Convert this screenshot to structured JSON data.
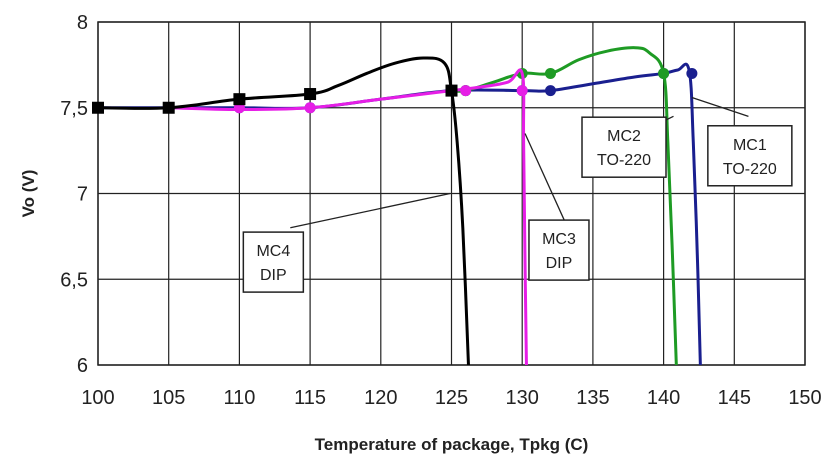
{
  "chart_data": {
    "type": "line",
    "title": "",
    "xlabel": "Temperature of package, Tpkg (C)",
    "ylabel": "Vo (V)",
    "xlim": [
      100,
      150
    ],
    "ylim": [
      6,
      8
    ],
    "x_ticks": [
      "100",
      "105",
      "110",
      "115",
      "120",
      "125",
      "130",
      "135",
      "140",
      "145",
      "150"
    ],
    "y_ticks": [
      "6",
      "6,5",
      "7",
      "7,5",
      "8"
    ],
    "grid": true,
    "legend": "none",
    "series": [
      {
        "color": "#1a1f8f",
        "marker": "circle",
        "curve": [
          [
            100,
            7.5
          ],
          [
            105,
            7.5
          ],
          [
            110,
            7.5
          ],
          [
            115,
            7.5
          ],
          [
            120,
            7.55
          ],
          [
            125,
            7.6
          ],
          [
            130,
            7.6
          ],
          [
            132,
            7.6
          ],
          [
            135,
            7.64
          ],
          [
            138,
            7.68
          ],
          [
            140,
            7.7
          ],
          [
            141,
            7.72
          ],
          [
            141.8,
            7.72
          ],
          [
            142.1,
            7.3
          ],
          [
            142.4,
            6.6
          ],
          [
            142.6,
            6
          ]
        ],
        "markers": [
          [
            110,
            7.5
          ],
          [
            115,
            7.5
          ],
          [
            126,
            7.6
          ],
          [
            130,
            7.6
          ],
          [
            132,
            7.6
          ],
          [
            140,
            7.7
          ],
          [
            142,
            7.7
          ]
        ]
      },
      {
        "color": "#1e9b24",
        "marker": "circle",
        "curve": [
          [
            125,
            7.6
          ],
          [
            126,
            7.6
          ],
          [
            128,
            7.65
          ],
          [
            130,
            7.7
          ],
          [
            132,
            7.7
          ],
          [
            134,
            7.78
          ],
          [
            136,
            7.83
          ],
          [
            138,
            7.85
          ],
          [
            139,
            7.82
          ],
          [
            140,
            7.7
          ],
          [
            140.3,
            7.3
          ],
          [
            140.6,
            6.7
          ],
          [
            140.9,
            6
          ]
        ],
        "markers": [
          [
            126,
            7.6
          ],
          [
            130,
            7.7
          ],
          [
            132,
            7.7
          ],
          [
            140,
            7.7
          ]
        ]
      },
      {
        "color": "#e61ee6",
        "marker": "circle",
        "curve": [
          [
            105,
            7.5
          ],
          [
            110,
            7.49
          ],
          [
            115,
            7.5
          ],
          [
            120,
            7.55
          ],
          [
            125,
            7.6
          ],
          [
            127,
            7.62
          ],
          [
            129,
            7.65
          ],
          [
            130,
            7.7
          ],
          [
            130.1,
            7.3
          ],
          [
            130.2,
            6.6
          ],
          [
            130.3,
            6
          ]
        ],
        "markers": [
          [
            110,
            7.5
          ],
          [
            115,
            7.5
          ],
          [
            126,
            7.6
          ],
          [
            130,
            7.6
          ]
        ]
      },
      {
        "color": "#000000",
        "marker": "square",
        "curve": [
          [
            100,
            7.5
          ],
          [
            105,
            7.5
          ],
          [
            110,
            7.55
          ],
          [
            115,
            7.58
          ],
          [
            117,
            7.63
          ],
          [
            119,
            7.7
          ],
          [
            121,
            7.76
          ],
          [
            123,
            7.79
          ],
          [
            124.5,
            7.76
          ],
          [
            125,
            7.6
          ],
          [
            125.4,
            7.3
          ],
          [
            125.8,
            6.8
          ],
          [
            126.2,
            6
          ]
        ],
        "markers": [
          [
            100,
            7.5
          ],
          [
            105,
            7.5
          ],
          [
            110,
            7.55
          ],
          [
            115,
            7.58
          ],
          [
            125,
            7.6
          ]
        ]
      }
    ],
    "annotations": [
      {
        "lines": [
          "MC1",
          "TO-220"
        ],
        "box_at": [
          146.1,
          7.22
        ],
        "leader_to": [
          142,
          7.56
        ],
        "leader_from": [
          146,
          7.45
        ]
      },
      {
        "lines": [
          "MC2",
          "TO-220"
        ],
        "box_at": [
          137.2,
          7.27
        ],
        "leader_to": [
          140.7,
          7.45
        ],
        "leader_from": [
          139.2,
          7.39
        ]
      },
      {
        "lines": [
          "MC3",
          "DIP"
        ],
        "box_at": [
          132.6,
          6.67
        ],
        "leader_to": [
          130.2,
          7.35
        ],
        "leader_from": [
          133,
          6.84
        ]
      },
      {
        "lines": [
          "MC4",
          "DIP"
        ],
        "box_at": [
          112.4,
          6.6
        ],
        "leader_to": [
          124.9,
          7.0
        ],
        "leader_from": [
          113.6,
          6.8
        ]
      }
    ]
  }
}
